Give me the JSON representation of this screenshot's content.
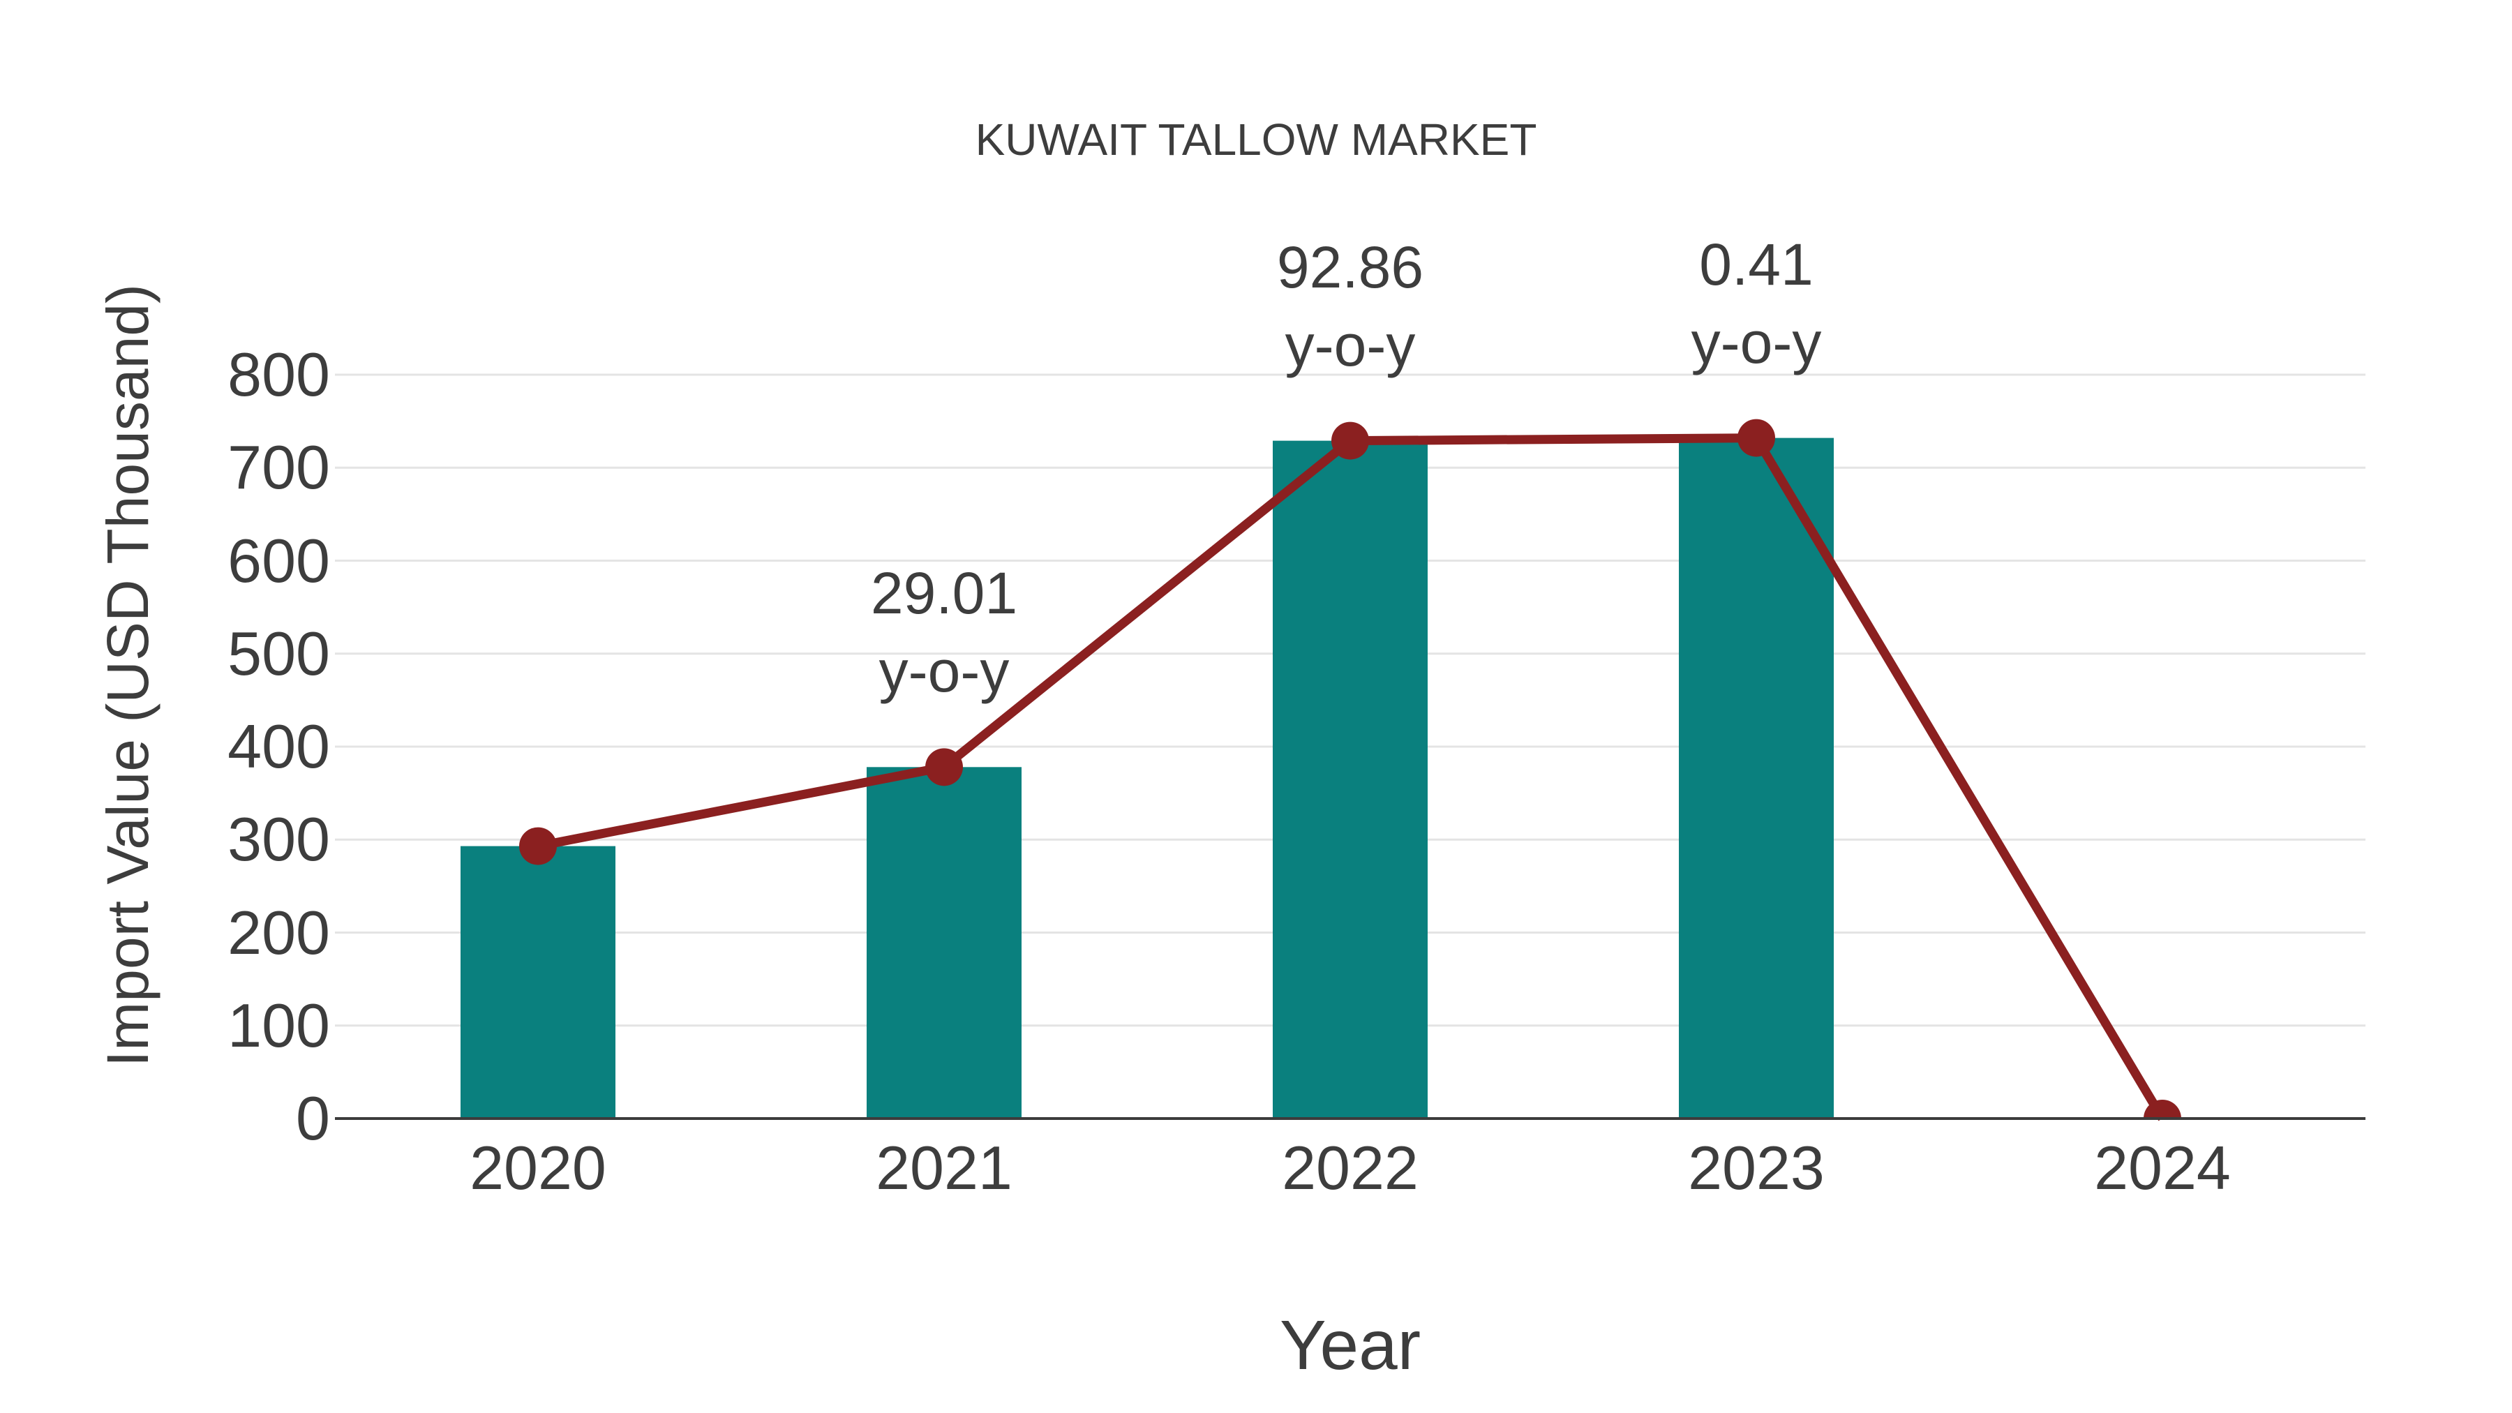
{
  "chart_data": {
    "type": "bar",
    "title": "KUWAIT TALLOW MARKET",
    "xlabel": "Year",
    "ylabel": "Import Value (USD Thousand)",
    "categories": [
      "2020",
      "2021",
      "2022",
      "2023",
      "2024"
    ],
    "series": [
      {
        "name": "import-value-bars",
        "type": "bar",
        "values": [
          293,
          378,
          729,
          732,
          null
        ]
      },
      {
        "name": "import-value-trend-line",
        "type": "line",
        "values": [
          293,
          378,
          729,
          732,
          0
        ]
      }
    ],
    "annotations": [
      {
        "category": "2021",
        "line1": "29.01",
        "line2": "y-o-y"
      },
      {
        "category": "2022",
        "line1": "92.86",
        "line2": "y-o-y"
      },
      {
        "category": "2023",
        "line1": "0.41",
        "line2": "y-o-y"
      }
    ],
    "yticks": [
      0,
      100,
      200,
      300,
      400,
      500,
      600,
      700,
      800
    ],
    "ylim": [
      0,
      800
    ],
    "grid": "horizontal",
    "legend_position": "none",
    "colors": {
      "bar": "#0a807e",
      "line": "#8b2020",
      "marker": "#8b2020",
      "grid": "#e4e4e4",
      "axis": "#3c3c3c",
      "text": "#3d3d3d",
      "background": "#ffffff"
    }
  }
}
